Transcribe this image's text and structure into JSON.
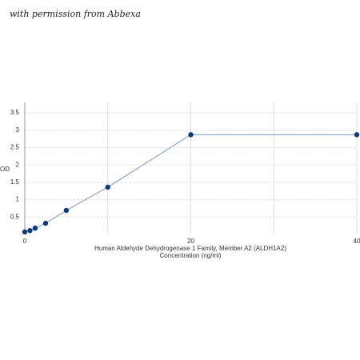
{
  "chart_data": {
    "type": "line",
    "watermark": "with permission from Abbexa",
    "xlabel": [
      "Human Aldehyde Dehydrogenase 1 Family, Member A2 (ALDH1A2)",
      "Concentration (ng/ml)"
    ],
    "ylabel": "OD",
    "x": [
      0,
      0.625,
      1.25,
      2.5,
      5,
      10,
      20,
      40
    ],
    "series": [
      {
        "color": "#0d3b7a",
        "line_color": "#7a96c0",
        "values": [
          0.07,
          0.11,
          0.18,
          0.32,
          0.69,
          1.36,
          2.87,
          2.87
        ]
      }
    ],
    "xlim": [
      0,
      40
    ],
    "xticks": [
      0,
      {
        "value": 10,
        "label": null
      },
      20,
      {
        "value": 30,
        "label": null
      },
      40
    ],
    "ylim": [
      0,
      3.8
    ],
    "yticks": [
      0.5,
      1,
      1.5,
      2,
      2.5,
      3,
      3.5
    ],
    "grid": true
  }
}
